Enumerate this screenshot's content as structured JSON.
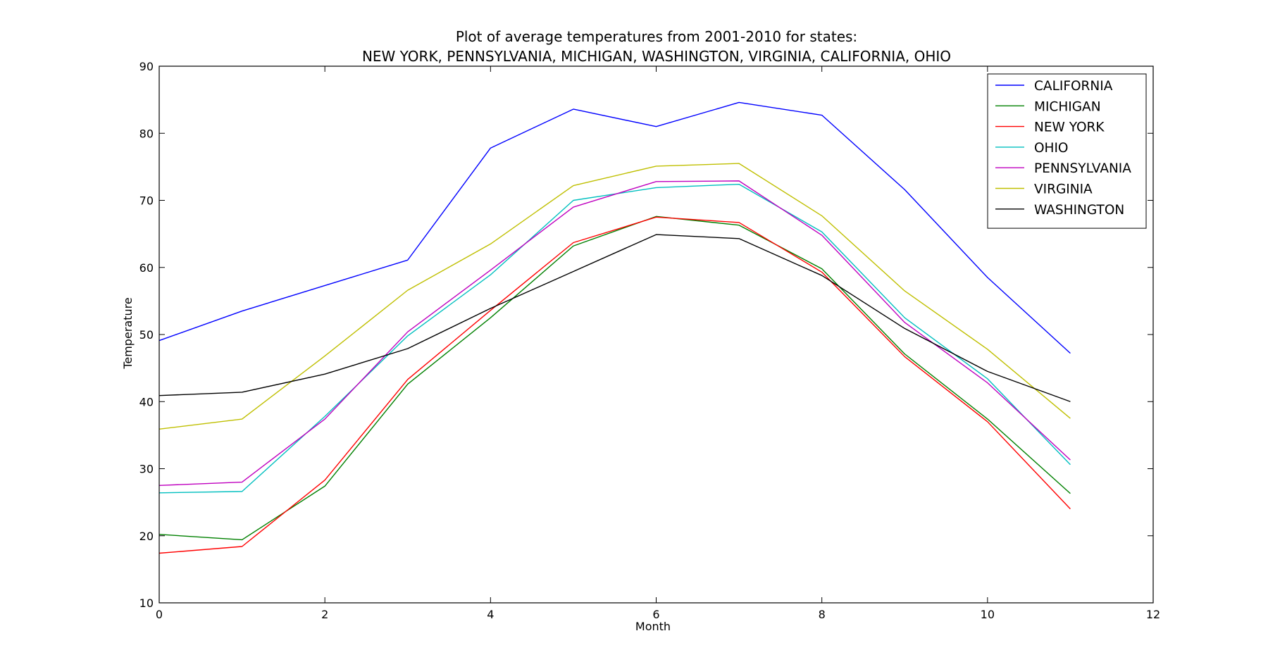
{
  "chart_data": {
    "type": "line",
    "title_line1": "Plot of average temperatures from 2001-2010 for states:",
    "title_line2": "NEW YORK, PENNSYLVANIA, MICHIGAN, WASHINGTON, VIRGINIA, CALIFORNIA, OHIO",
    "xlabel": "Month",
    "ylabel": "Temperature",
    "xlim": [
      0,
      12
    ],
    "ylim": [
      10,
      90
    ],
    "xticks": [
      0,
      2,
      4,
      6,
      8,
      10,
      12
    ],
    "yticks": [
      10,
      20,
      30,
      40,
      50,
      60,
      70,
      80,
      90
    ],
    "grid": false,
    "legend_position": "top-right",
    "x": [
      0,
      1,
      2,
      3,
      4,
      5,
      6,
      7,
      8,
      9,
      10,
      11
    ],
    "series": [
      {
        "name": "CALIFORNIA",
        "color": "#0000ff",
        "values": [
          49.1,
          53.5,
          57.3,
          61.1,
          77.8,
          83.6,
          81.0,
          84.6,
          82.7,
          71.6,
          58.5,
          47.2
        ]
      },
      {
        "name": "MICHIGAN",
        "color": "#008000",
        "values": [
          20.2,
          19.4,
          27.4,
          42.6,
          52.5,
          63.2,
          67.6,
          66.3,
          59.8,
          47.1,
          37.4,
          26.3
        ]
      },
      {
        "name": "NEW YORK",
        "color": "#ff0000",
        "values": [
          17.4,
          18.4,
          28.3,
          43.3,
          53.6,
          63.7,
          67.5,
          66.7,
          59.3,
          46.7,
          37.0,
          24.0
        ]
      },
      {
        "name": "OHIO",
        "color": "#00bfbf",
        "values": [
          26.4,
          26.6,
          37.8,
          49.8,
          58.9,
          70.0,
          71.9,
          72.4,
          65.3,
          52.5,
          43.4,
          30.6
        ]
      },
      {
        "name": "PENNSYLVANIA",
        "color": "#bf00bf",
        "values": [
          27.5,
          28.0,
          37.4,
          50.4,
          59.6,
          69.0,
          72.8,
          72.9,
          64.8,
          51.8,
          42.8,
          31.3
        ]
      },
      {
        "name": "VIRGINIA",
        "color": "#bfbf00",
        "values": [
          35.9,
          37.4,
          46.8,
          56.6,
          63.5,
          72.2,
          75.1,
          75.5,
          67.7,
          56.5,
          47.8,
          37.5
        ]
      },
      {
        "name": "WASHINGTON",
        "color": "#000000",
        "values": [
          40.9,
          41.4,
          44.1,
          47.9,
          53.9,
          59.4,
          64.9,
          64.3,
          58.8,
          50.9,
          44.5,
          40.0
        ]
      }
    ]
  }
}
